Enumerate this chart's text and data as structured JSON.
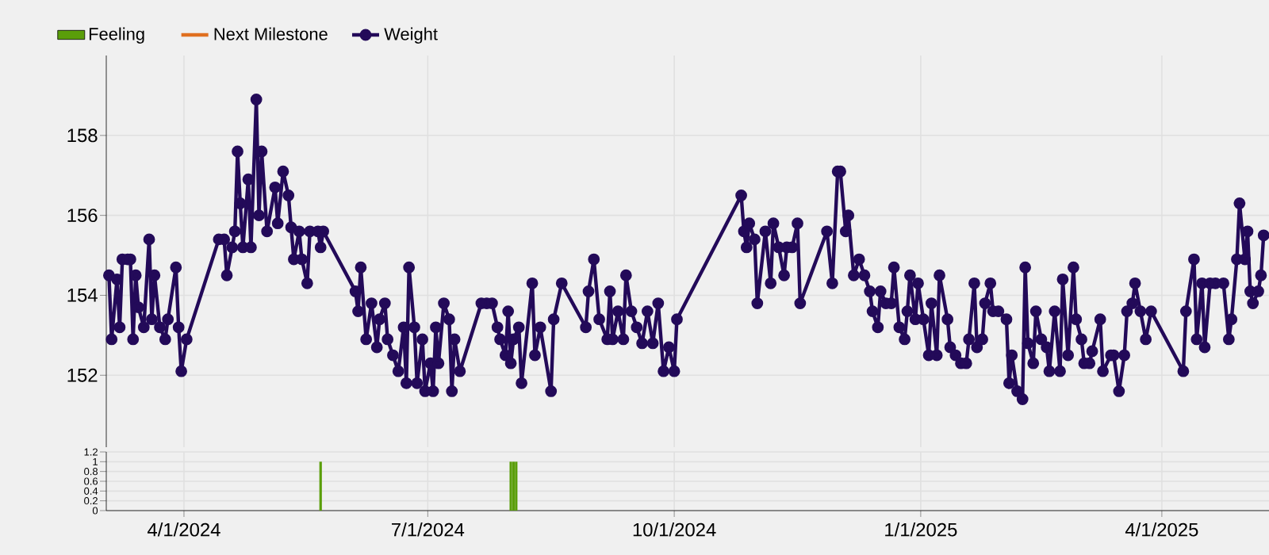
{
  "chart_data": [
    {
      "type": "line",
      "legend": "top left",
      "grid": true,
      "marker": "circle",
      "line_style": "solid",
      "tick_labels": "y",
      "xlim": [
        "2024-03-03",
        "2025-05-11"
      ],
      "ylim": [
        150.2,
        160
      ],
      "xticks": [
        {
          "value": "2024-04-01",
          "label": null
        },
        {
          "value": "2024-07-01",
          "label": null
        },
        {
          "value": "2024-10-01",
          "label": null
        },
        {
          "value": "2025-01-01",
          "label": null
        },
        {
          "value": "2025-04-01",
          "label": null
        }
      ],
      "yticks": [
        152,
        154,
        156,
        158
      ],
      "series": [
        {
          "name": "Next Milestone",
          "color": "#e07020",
          "marker": "none"
        },
        {
          "name": "Weight",
          "color": "#230a59",
          "x": [
            "2024-03-04",
            "2024-03-05",
            "2024-03-07",
            "2024-03-08",
            "2024-03-09",
            "2024-03-11",
            "2024-03-12",
            "2024-03-13",
            "2024-03-14",
            "2024-03-15",
            "2024-03-17",
            "2024-03-19",
            "2024-03-20",
            "2024-03-21",
            "2024-03-23",
            "2024-03-25",
            "2024-03-26",
            "2024-03-29",
            "2024-03-30",
            "2024-03-31",
            "2024-04-02",
            "2024-04-14",
            "2024-04-16",
            "2024-04-17",
            "2024-04-19",
            "2024-04-20",
            "2024-04-21",
            "2024-04-22",
            "2024-04-23",
            "2024-04-25",
            "2024-04-26",
            "2024-04-28",
            "2024-04-29",
            "2024-04-30",
            "2024-05-02",
            "2024-05-05",
            "2024-05-06",
            "2024-05-08",
            "2024-05-10",
            "2024-05-11",
            "2024-05-12",
            "2024-05-14",
            "2024-05-15",
            "2024-05-17",
            "2024-05-18",
            "2024-05-21",
            "2024-05-22",
            "2024-05-23",
            "2024-06-04",
            "2024-06-05",
            "2024-06-06",
            "2024-06-08",
            "2024-06-10",
            "2024-06-12",
            "2024-06-13",
            "2024-06-15",
            "2024-06-16",
            "2024-06-18",
            "2024-06-20",
            "2024-06-22",
            "2024-06-23",
            "2024-06-24",
            "2024-06-26",
            "2024-06-27",
            "2024-06-29",
            "2024-06-30",
            "2024-07-02",
            "2024-07-03",
            "2024-07-04",
            "2024-07-05",
            "2024-07-07",
            "2024-07-09",
            "2024-07-10",
            "2024-07-11",
            "2024-07-13",
            "2024-07-21",
            "2024-07-23",
            "2024-07-25",
            "2024-07-27",
            "2024-07-28",
            "2024-07-30",
            "2024-07-31",
            "2024-08-01",
            "2024-08-02",
            "2024-08-04",
            "2024-08-05",
            "2024-08-09",
            "2024-08-10",
            "2024-08-12",
            "2024-08-16",
            "2024-08-17",
            "2024-08-20",
            "2024-08-29",
            "2024-08-30",
            "2024-09-01",
            "2024-09-03",
            "2024-09-06",
            "2024-09-07",
            "2024-09-08",
            "2024-09-10",
            "2024-09-12",
            "2024-09-13",
            "2024-09-15",
            "2024-09-17",
            "2024-09-19",
            "2024-09-21",
            "2024-09-23",
            "2024-09-25",
            "2024-09-27",
            "2024-09-29",
            "2024-10-01",
            "2024-10-02",
            "2024-10-26",
            "2024-10-27",
            "2024-10-28",
            "2024-10-29",
            "2024-10-31",
            "2024-11-01",
            "2024-11-04",
            "2024-11-06",
            "2024-11-07",
            "2024-11-09",
            "2024-11-11",
            "2024-11-12",
            "2024-11-14",
            "2024-11-16",
            "2024-11-17",
            "2024-11-27",
            "2024-11-29",
            "2024-12-01",
            "2024-12-02",
            "2024-12-04",
            "2024-12-05",
            "2024-12-07",
            "2024-12-09",
            "2024-12-11",
            "2024-12-13",
            "2024-12-14",
            "2024-12-16",
            "2024-12-17",
            "2024-12-19",
            "2024-12-21",
            "2024-12-22",
            "2024-12-24",
            "2024-12-26",
            "2024-12-27",
            "2024-12-28",
            "2024-12-30",
            "2024-12-31",
            "2025-01-02",
            "2025-01-04",
            "2025-01-05",
            "2025-01-07",
            "2025-01-08",
            "2025-01-11",
            "2025-01-12",
            "2025-01-14",
            "2025-01-16",
            "2025-01-18",
            "2025-01-19",
            "2025-01-21",
            "2025-01-22",
            "2025-01-24",
            "2025-01-25",
            "2025-01-27",
            "2025-01-28",
            "2025-01-30",
            "2025-02-02",
            "2025-02-03",
            "2025-02-04",
            "2025-02-06",
            "2025-02-08",
            "2025-02-09",
            "2025-02-10",
            "2025-02-12",
            "2025-02-13",
            "2025-02-15",
            "2025-02-17",
            "2025-02-18",
            "2025-02-20",
            "2025-02-22",
            "2025-02-23",
            "2025-02-25",
            "2025-02-27",
            "2025-02-28",
            "2025-03-02",
            "2025-03-03",
            "2025-03-05",
            "2025-03-06",
            "2025-03-09",
            "2025-03-10",
            "2025-03-13",
            "2025-03-14",
            "2025-03-16",
            "2025-03-18",
            "2025-03-19",
            "2025-03-21",
            "2025-03-22",
            "2025-03-24",
            "2025-03-26",
            "2025-03-28",
            "2025-04-09",
            "2025-04-10",
            "2025-04-13",
            "2025-04-14",
            "2025-04-16",
            "2025-04-17",
            "2025-04-19",
            "2025-04-21",
            "2025-04-24",
            "2025-04-26",
            "2025-04-27",
            "2025-04-29",
            "2025-04-30",
            "2025-05-02",
            "2025-05-03",
            "2025-05-04",
            "2025-05-05",
            "2025-05-07",
            "2025-05-08",
            "2025-05-09"
          ],
          "values": [
            154.5,
            152.9,
            154.4,
            153.2,
            154.9,
            154.9,
            154.9,
            152.9,
            154.5,
            153.7,
            153.2,
            155.4,
            153.4,
            154.5,
            153.2,
            152.9,
            153.4,
            154.7,
            153.2,
            152.1,
            152.9,
            155.4,
            155.4,
            154.5,
            155.2,
            155.6,
            157.6,
            156.3,
            155.2,
            156.9,
            155.2,
            158.9,
            156.0,
            157.6,
            155.6,
            156.7,
            155.8,
            157.1,
            156.5,
            155.7,
            154.9,
            155.6,
            154.9,
            154.3,
            155.6,
            155.6,
            155.2,
            155.6,
            154.1,
            153.6,
            154.7,
            152.9,
            153.8,
            152.7,
            153.4,
            153.8,
            152.9,
            152.5,
            152.1,
            153.2,
            151.8,
            154.7,
            153.2,
            151.8,
            152.9,
            151.6,
            152.3,
            151.6,
            153.2,
            152.3,
            153.8,
            153.4,
            151.6,
            152.9,
            152.1,
            153.8,
            153.8,
            153.8,
            153.2,
            152.9,
            152.5,
            153.6,
            152.3,
            152.9,
            153.2,
            151.8,
            154.3,
            152.5,
            153.2,
            151.6,
            153.4,
            154.3,
            153.2,
            154.1,
            154.9,
            153.4,
            152.9,
            154.1,
            152.9,
            153.6,
            152.9,
            154.5,
            153.6,
            153.2,
            152.8,
            153.6,
            152.8,
            153.8,
            152.1,
            152.7,
            152.1,
            153.4,
            156.5,
            155.6,
            155.2,
            155.8,
            155.4,
            153.8,
            155.6,
            154.3,
            155.8,
            155.2,
            154.5,
            155.2,
            155.2,
            155.8,
            153.8,
            155.6,
            154.3,
            157.1,
            157.1,
            155.6,
            156.0,
            154.5,
            154.9,
            154.5,
            154.1,
            153.6,
            153.2,
            154.1,
            153.8,
            153.8,
            154.7,
            153.2,
            152.9,
            153.6,
            154.5,
            153.4,
            154.3,
            153.4,
            152.5,
            153.8,
            152.5,
            154.5,
            153.4,
            152.7,
            152.5,
            152.3,
            152.3,
            152.9,
            154.3,
            152.7,
            152.9,
            153.8,
            154.3,
            153.6,
            153.6,
            153.4,
            151.8,
            152.5,
            151.6,
            151.4,
            154.7,
            152.8,
            152.3,
            153.6,
            152.9,
            152.7,
            152.1,
            153.6,
            152.1,
            154.4,
            152.5,
            154.7,
            153.4,
            152.9,
            152.3,
            152.3,
            152.6,
            153.4,
            152.1,
            152.5,
            152.5,
            151.6,
            152.5,
            153.6,
            153.8,
            154.3,
            153.6,
            152.9,
            153.6,
            152.1,
            153.6,
            154.9,
            152.9,
            154.3,
            152.7,
            154.3,
            154.3,
            154.3,
            152.9,
            153.4,
            154.9,
            156.3,
            154.9,
            155.6,
            154.1,
            153.8,
            154.1,
            154.5,
            155.5
          ]
        }
      ]
    },
    {
      "type": "bar",
      "legend": "top left",
      "grid": true,
      "xlim": [
        "2024-03-03",
        "2025-05-11"
      ],
      "ylim": [
        0,
        1.2
      ],
      "xticks": [
        {
          "value": "2024-04-01",
          "label": "4/1/2024"
        },
        {
          "value": "2024-07-01",
          "label": "7/1/2024"
        },
        {
          "value": "2024-10-01",
          "label": "10/1/2024"
        },
        {
          "value": "2025-01-01",
          "label": "1/1/2025"
        },
        {
          "value": "2025-04-01",
          "label": "4/1/2025"
        }
      ],
      "yticks": [
        0,
        0.2,
        0.4,
        0.6,
        0.8,
        1,
        1.2
      ],
      "x": [
        "2024-05-22",
        "2024-08-01",
        "2024-08-02",
        "2024-08-03"
      ],
      "series": [
        {
          "name": "Feeling",
          "color": "#5a9e0a",
          "values": [
            1,
            1,
            1,
            1
          ]
        }
      ]
    }
  ]
}
